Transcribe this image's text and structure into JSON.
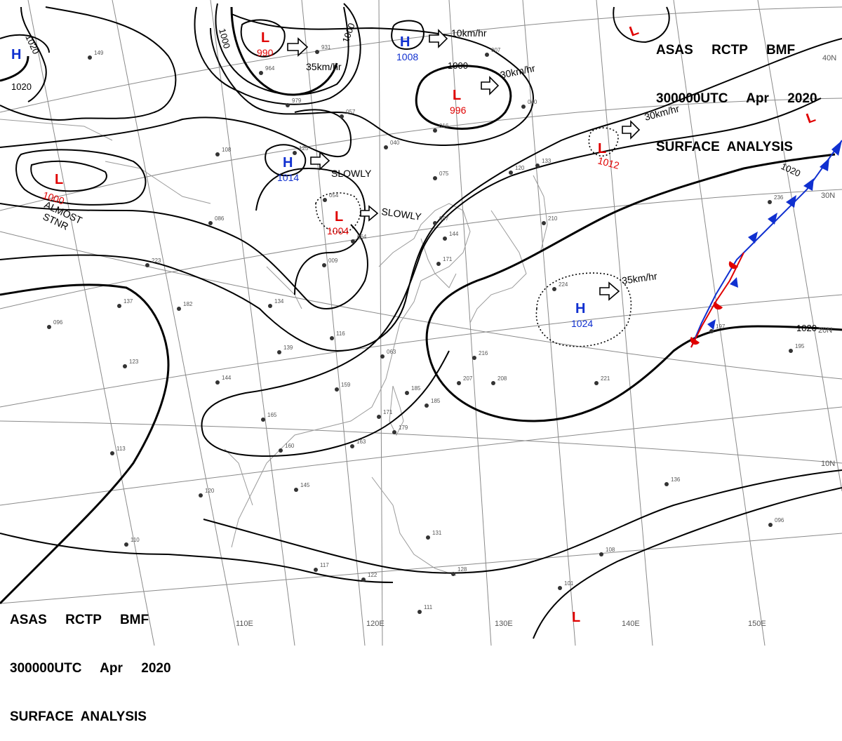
{
  "header_top_right": {
    "line1": "ASAS     RCTP     BMF",
    "line2": "300000UTC     Apr     2020",
    "line3": "SURFACE  ANALYSIS"
  },
  "header_bottom_left": {
    "line1": "ASAS     RCTP     BMF",
    "line2": "300000UTC     Apr     2020",
    "line3": "SURFACE  ANALYSIS"
  },
  "pressure_systems": [
    {
      "type": "L",
      "pressure": "990"
    },
    {
      "type": "H",
      "pressure": "1008"
    },
    {
      "type": "L",
      "pressure": "996"
    },
    {
      "type": "H",
      "pressure": "1014"
    },
    {
      "type": "L",
      "pressure": "1004"
    },
    {
      "type": "L",
      "pressure": "1000"
    },
    {
      "type": "L",
      "pressure": "1012"
    },
    {
      "type": "H",
      "pressure": "1024"
    },
    {
      "type": "H",
      "pressure": ""
    },
    {
      "type": "L",
      "pressure": ""
    },
    {
      "type": "L",
      "pressure": ""
    },
    {
      "type": "L",
      "pressure": ""
    }
  ],
  "movements": [
    "35km/hr",
    "10km/hr",
    "30km/hr",
    "SLOWLY",
    "SLOWLY",
    "30km/hr",
    "35km/hr",
    "ALMOST",
    "STNR"
  ],
  "isobar_labels": [
    "1020",
    "1020",
    "1000",
    "1000",
    "1000",
    "1020",
    "1020"
  ],
  "longitude_labels": [
    "110E",
    "120E",
    "130E",
    "140E",
    "150E"
  ],
  "latitude_labels": [
    "40N",
    "30N",
    "20N",
    "10N"
  ],
  "station_plots": [
    "149",
    "223",
    "137",
    "182",
    "096",
    "123",
    "113",
    "110",
    "117",
    "122",
    "111",
    "131",
    "964",
    "931",
    "979",
    "125",
    "108",
    "057",
    "040",
    "086",
    "054",
    "064",
    "009",
    "134",
    "116",
    "139",
    "144",
    "159",
    "165",
    "160",
    "145",
    "120",
    "163",
    "063",
    "185",
    "179",
    "171",
    "185",
    "207",
    "208",
    "216",
    "221",
    "224",
    "210",
    "144",
    "171",
    "075",
    "120",
    "133",
    "097",
    "040",
    "016",
    "007",
    "236",
    "195",
    "197",
    "136",
    "096",
    "108",
    "101",
    "128"
  ],
  "colors": {
    "low": "#e00000",
    "high": "#1030d0",
    "isobar": "#000000",
    "grid": "#8a8a8a",
    "cold_front": "#1030d0",
    "warm_front": "#e00000"
  }
}
